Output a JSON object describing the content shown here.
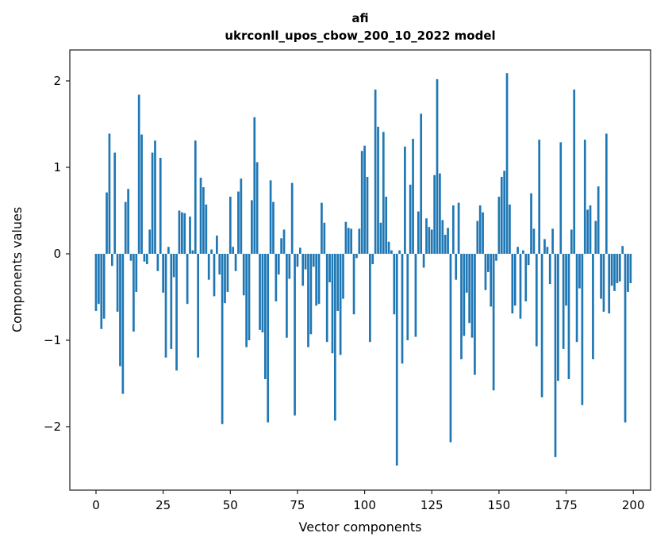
{
  "figure": {
    "title_line1": "afi",
    "title_line2": "ukrconll_upos_cbow_200_10_2022 model"
  },
  "chart_data": {
    "type": "bar",
    "title": "afi — ukrconll_upos_cbow_200_10_2022 model",
    "xlabel": "Vector components",
    "ylabel": "Components values",
    "x_description": "integer component indices 0..199",
    "x_ticks": [
      0,
      25,
      50,
      75,
      100,
      125,
      150,
      175,
      200
    ],
    "y_ticks": [
      2,
      1,
      0,
      -1,
      -2
    ],
    "xlim": [
      -9.7,
      206.4
    ],
    "ylim": [
      -2.73,
      2.36
    ],
    "grid": false,
    "legend": null,
    "bar_color": "#1f77b4",
    "spine_color": "#1a1a1a",
    "values": [
      -0.66,
      -0.58,
      -0.87,
      -0.75,
      0.71,
      1.39,
      -0.14,
      1.17,
      -0.67,
      -1.3,
      -1.62,
      0.6,
      0.75,
      -0.08,
      -0.9,
      -0.44,
      1.84,
      1.38,
      -0.09,
      -0.12,
      0.28,
      1.17,
      1.31,
      -0.2,
      1.11,
      -0.45,
      -1.2,
      0.08,
      -1.1,
      -0.27,
      -1.35,
      0.5,
      0.48,
      0.47,
      -0.58,
      0.43,
      0.04,
      1.31,
      -1.2,
      0.88,
      0.77,
      0.57,
      -0.3,
      0.05,
      -0.49,
      0.21,
      -0.24,
      -1.97,
      -0.57,
      -0.44,
      0.66,
      0.08,
      -0.2,
      0.72,
      0.87,
      -0.48,
      -1.08,
      -1.0,
      0.62,
      1.58,
      1.06,
      -0.88,
      -0.91,
      -1.45,
      -1.95,
      0.85,
      0.6,
      -0.55,
      -0.24,
      0.18,
      0.28,
      -0.97,
      -0.29,
      0.82,
      -1.87,
      -0.15,
      0.07,
      -0.37,
      -0.18,
      -1.08,
      -0.93,
      -0.15,
      -0.6,
      -0.58,
      0.59,
      0.36,
      -1.02,
      -0.33,
      -1.15,
      -1.93,
      -0.66,
      -1.17,
      -0.52,
      0.37,
      0.3,
      0.29,
      -0.7,
      -0.05,
      0.29,
      1.19,
      1.25,
      0.89,
      -1.02,
      -0.12,
      1.9,
      1.47,
      0.36,
      1.41,
      0.66,
      0.14,
      0.04,
      -0.7,
      -2.45,
      0.04,
      -1.27,
      1.24,
      -1.0,
      0.8,
      1.33,
      -0.96,
      0.49,
      1.62,
      -0.16,
      0.41,
      0.31,
      0.28,
      0.91,
      2.02,
      0.93,
      0.39,
      0.22,
      0.3,
      -2.18,
      0.56,
      -0.3,
      0.59,
      -1.22,
      -0.95,
      -0.45,
      -0.8,
      -0.97,
      -1.4,
      0.38,
      0.56,
      0.48,
      -0.42,
      -0.21,
      -0.61,
      -1.58,
      -0.08,
      0.66,
      0.89,
      0.96,
      2.09,
      0.57,
      -0.69,
      -0.6,
      0.08,
      -0.75,
      0.04,
      -0.55,
      -0.13,
      0.7,
      0.29,
      -1.07,
      1.32,
      -1.66,
      0.17,
      0.08,
      -0.35,
      0.29,
      -2.35,
      -1.47,
      1.29,
      -1.1,
      -0.6,
      -1.45,
      0.28,
      1.9,
      -1.02,
      -0.4,
      -1.75,
      1.32,
      0.51,
      0.56,
      -1.22,
      0.38,
      0.78,
      -0.52,
      -0.67,
      1.39,
      -0.69,
      -0.37,
      -0.43,
      -0.34,
      -0.32,
      0.09,
      -1.95,
      -0.44,
      -0.34
    ]
  }
}
